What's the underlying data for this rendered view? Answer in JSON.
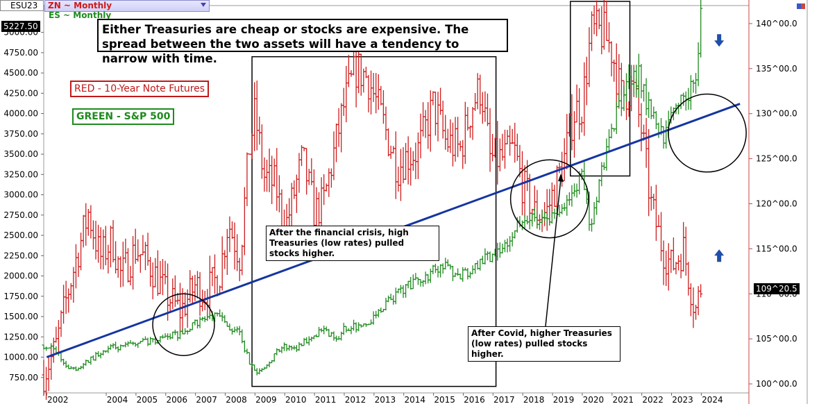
{
  "header": {
    "symbol": "ESU23",
    "series_selector": "ZN ~ Monthly",
    "overlay_label": "ES ~ Monthly",
    "last_price_left": "5227.50",
    "last_price_right": "109^20.5"
  },
  "annotations": {
    "title": "Either Treasuries are cheap or stocks are expensive. The spread between the two assets will have a tendency to narrow with time.",
    "legend_red": "RED - 10-Year Note Futures",
    "legend_green": "GREEN - S&P 500",
    "note_financial_crisis": "After the financial crisis, high Treasuries (low rates) pulled stocks higher.",
    "note_covid": "After Covid, higher Treasuries (low rates) pulled stocks higher."
  },
  "colors": {
    "treasuries": "#cc1c1c",
    "stocks": "#1e8a1e",
    "trendline": "#1535a0",
    "arrows": "#1f4fa8"
  },
  "chart_data": {
    "type": "line",
    "frequency": "monthly",
    "x_ticks": [
      "2002",
      "2004",
      "2005",
      "2006",
      "2007",
      "2008",
      "2009",
      "2010",
      "2011",
      "2012",
      "2013",
      "2014",
      "2015",
      "2016",
      "2017",
      "2018",
      "2019",
      "2020",
      "2021",
      "2022",
      "2023",
      "2024"
    ],
    "left_axis": {
      "ticks": [
        "750.00",
        "1000.00",
        "1250.00",
        "1500.00",
        "1750.00",
        "2000.00",
        "2250.00",
        "2500.00",
        "2750.00",
        "3000.00",
        "3250.00",
        "3500.00",
        "3750.00",
        "4000.00",
        "4250.00",
        "4500.00",
        "4750.00",
        "5000.00"
      ],
      "range": [
        560,
        5330
      ]
    },
    "right_axis": {
      "ticks": [
        "100^00.0",
        "105^00.0",
        "110^00.0",
        "115^00.0",
        "120^00.0",
        "125^00.0",
        "130^00.0",
        "135^00.0",
        "140^00.0"
      ],
      "range": [
        99,
        142
      ]
    },
    "series": [
      {
        "name": "ZN ~ Monthly",
        "axis": "right",
        "points": [
          [
            2001.9,
            101
          ],
          [
            2002.3,
            104
          ],
          [
            2002.7,
            110
          ],
          [
            2003.0,
            114
          ],
          [
            2003.4,
            119
          ],
          [
            2003.8,
            114
          ],
          [
            2004.2,
            116
          ],
          [
            2004.5,
            112
          ],
          [
            2005.0,
            115
          ],
          [
            2005.5,
            113
          ],
          [
            2006.0,
            110
          ],
          [
            2006.5,
            108
          ],
          [
            2007.0,
            111
          ],
          [
            2007.3,
            110
          ],
          [
            2007.8,
            112
          ],
          [
            2008.1,
            118
          ],
          [
            2008.5,
            114
          ],
          [
            2008.8,
            126
          ],
          [
            2009.0,
            130
          ],
          [
            2009.3,
            123
          ],
          [
            2009.7,
            122
          ],
          [
            2010.0,
            117
          ],
          [
            2010.3,
            121
          ],
          [
            2010.6,
            125
          ],
          [
            2011.0,
            119
          ],
          [
            2011.3,
            120
          ],
          [
            2011.8,
            128
          ],
          [
            2012.0,
            131
          ],
          [
            2012.4,
            135
          ],
          [
            2012.8,
            134
          ],
          [
            2013.0,
            132
          ],
          [
            2013.4,
            128
          ],
          [
            2013.8,
            124
          ],
          [
            2014.0,
            125
          ],
          [
            2014.5,
            126
          ],
          [
            2015.0,
            131
          ],
          [
            2015.4,
            127
          ],
          [
            2015.9,
            126
          ],
          [
            2016.3,
            131
          ],
          [
            2016.6,
            133
          ],
          [
            2016.9,
            125
          ],
          [
            2017.3,
            125
          ],
          [
            2017.7,
            126
          ],
          [
            2018.0,
            122
          ],
          [
            2018.4,
            119
          ],
          [
            2018.8,
            119
          ],
          [
            2019.0,
            121
          ],
          [
            2019.4,
            125
          ],
          [
            2019.7,
            130
          ],
          [
            2020.0,
            131
          ],
          [
            2020.3,
            139
          ],
          [
            2020.7,
            139
          ],
          [
            2021.0,
            137
          ],
          [
            2021.3,
            132
          ],
          [
            2021.7,
            133
          ],
          [
            2022.0,
            128
          ],
          [
            2022.3,
            120
          ],
          [
            2022.7,
            115
          ],
          [
            2023.0,
            113
          ],
          [
            2023.4,
            115
          ],
          [
            2023.8,
            108
          ],
          [
            2024.0,
            111
          ]
        ]
      },
      {
        "name": "ES ~ Monthly",
        "axis": "left",
        "points": [
          [
            2001.9,
            1150
          ],
          [
            2002.3,
            1070
          ],
          [
            2002.7,
            880
          ],
          [
            2003.0,
            850
          ],
          [
            2003.4,
            960
          ],
          [
            2003.8,
            1050
          ],
          [
            2004.2,
            1120
          ],
          [
            2004.5,
            1110
          ],
          [
            2005.0,
            1180
          ],
          [
            2005.5,
            1200
          ],
          [
            2006.0,
            1260
          ],
          [
            2006.5,
            1280
          ],
          [
            2007.0,
            1420
          ],
          [
            2007.3,
            1480
          ],
          [
            2007.8,
            1500
          ],
          [
            2008.1,
            1380
          ],
          [
            2008.5,
            1280
          ],
          [
            2008.8,
            950
          ],
          [
            2009.0,
            800
          ],
          [
            2009.3,
            850
          ],
          [
            2009.7,
            1050
          ],
          [
            2010.0,
            1130
          ],
          [
            2010.3,
            1100
          ],
          [
            2010.6,
            1180
          ],
          [
            2011.0,
            1290
          ],
          [
            2011.3,
            1320
          ],
          [
            2011.8,
            1200
          ],
          [
            2012.0,
            1350
          ],
          [
            2012.4,
            1380
          ],
          [
            2012.8,
            1430
          ],
          [
            2013.0,
            1500
          ],
          [
            2013.4,
            1650
          ],
          [
            2013.8,
            1780
          ],
          [
            2014.0,
            1850
          ],
          [
            2014.5,
            1950
          ],
          [
            2015.0,
            2060
          ],
          [
            2015.4,
            2100
          ],
          [
            2015.9,
            2000
          ],
          [
            2016.3,
            2050
          ],
          [
            2016.6,
            2170
          ],
          [
            2016.9,
            2250
          ],
          [
            2017.3,
            2380
          ],
          [
            2017.7,
            2520
          ],
          [
            2018.0,
            2750
          ],
          [
            2018.4,
            2700
          ],
          [
            2018.8,
            2650
          ],
          [
            2019.0,
            2740
          ],
          [
            2019.4,
            2900
          ],
          [
            2019.7,
            3020
          ],
          [
            2020.0,
            3230
          ],
          [
            2020.3,
            2580
          ],
          [
            2020.7,
            3380
          ],
          [
            2021.0,
            3800
          ],
          [
            2021.3,
            4200
          ],
          [
            2021.7,
            4500
          ],
          [
            2022.0,
            4400
          ],
          [
            2022.3,
            4000
          ],
          [
            2022.7,
            3700
          ],
          [
            2023.0,
            3950
          ],
          [
            2023.4,
            4200
          ],
          [
            2023.8,
            4450
          ],
          [
            2024.0,
            5200
          ]
        ]
      }
    ],
    "trendline": [
      [
        2002.0,
        1000
      ],
      [
        2025.3,
        4120
      ]
    ],
    "circles": [
      {
        "center": [
          2006.6,
          1400
        ],
        "radius_left_units": 380
      },
      {
        "center": [
          2018.9,
          2950
        ],
        "radius_left_units": 480
      },
      {
        "center": [
          2024.2,
          3760
        ],
        "radius_left_units": 480
      }
    ],
    "boxes": [
      {
        "from": [
          2008.9,
          4700
        ],
        "to": [
          2017.1,
          640
        ]
      },
      {
        "from": [
          2019.6,
          5450
        ],
        "to": [
          2021.6,
          3300
        ]
      }
    ],
    "arrows": [
      {
        "direction": "down",
        "at": [
          2024.6,
          4900
        ]
      },
      {
        "direction": "up",
        "at": [
          2024.6,
          2250
        ]
      }
    ]
  }
}
